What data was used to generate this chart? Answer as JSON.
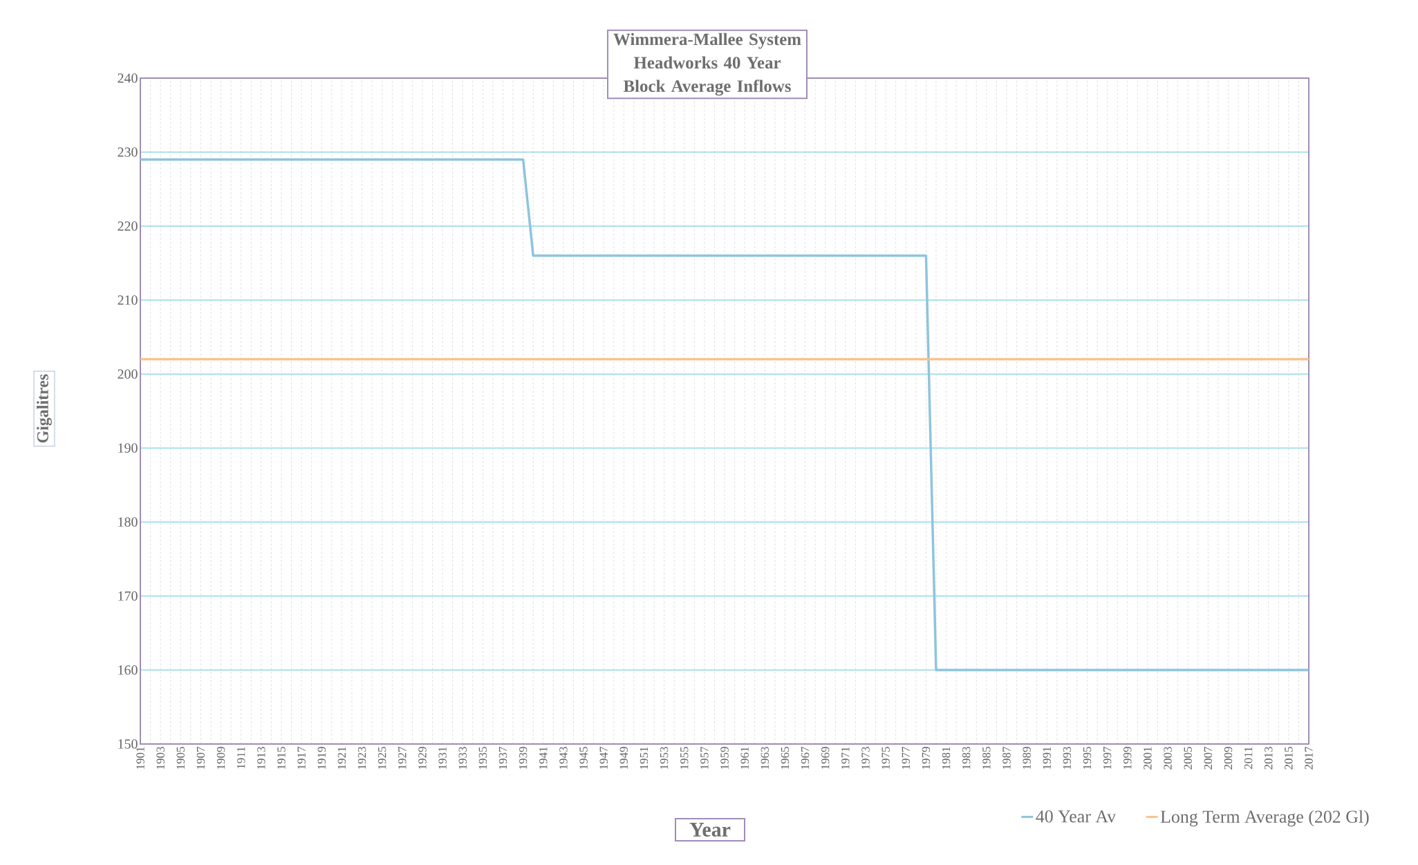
{
  "chart_data": {
    "type": "line",
    "title": "Wimmera-Mallee System Headworks 40 Year Block Average Inflows",
    "xlabel": "Year",
    "ylabel": "Gigalitres",
    "categories": [
      "1901",
      null,
      "1903",
      null,
      "1905",
      null,
      "1907",
      null,
      "1909",
      null,
      "1911",
      null,
      "1913",
      null,
      "1915",
      null,
      "1917",
      null,
      "1919",
      null,
      "1921",
      null,
      "1923",
      null,
      "1925",
      null,
      "1927",
      null,
      "1929",
      null,
      "1931",
      null,
      "1933",
      null,
      "1935",
      null,
      "1937",
      null,
      "1939",
      null,
      "1941",
      null,
      "1943",
      null,
      "1945",
      null,
      "1947",
      null,
      "1949",
      null,
      "1951",
      null,
      "1953",
      null,
      "1955",
      null,
      "1957",
      null,
      "1959",
      null,
      "1961",
      null,
      "1963",
      null,
      "1965",
      null,
      "1967",
      null,
      "1969",
      null,
      "1971",
      null,
      "1973",
      null,
      "1975",
      null,
      "1977",
      null,
      "1979",
      null,
      "1981",
      null,
      "1983",
      null,
      "1985",
      null,
      "1987",
      null,
      "1989",
      null,
      "1991",
      null,
      "1993",
      null,
      "1995",
      null,
      "1997",
      null,
      "1999",
      null,
      "2001",
      null,
      "2003",
      null,
      "2005",
      null,
      "2007",
      null,
      "2009",
      null,
      "2011",
      null,
      "2013",
      null,
      "2015",
      null,
      "2017"
    ],
    "series": [
      {
        "name": "40 Year Av",
        "color": "#8ec4dd",
        "values": [
          229,
          229,
          229,
          229,
          229,
          229,
          229,
          229,
          229,
          229,
          229,
          229,
          229,
          229,
          229,
          229,
          229,
          229,
          229,
          229,
          229,
          229,
          229,
          229,
          229,
          229,
          229,
          229,
          229,
          229,
          229,
          229,
          229,
          229,
          229,
          229,
          229,
          229,
          229,
          216,
          216,
          216,
          216,
          216,
          216,
          216,
          216,
          216,
          216,
          216,
          216,
          216,
          216,
          216,
          216,
          216,
          216,
          216,
          216,
          216,
          216,
          216,
          216,
          216,
          216,
          216,
          216,
          216,
          216,
          216,
          216,
          216,
          216,
          216,
          216,
          216,
          216,
          216,
          216,
          160,
          160,
          160,
          160,
          160,
          160,
          160,
          160,
          160,
          160,
          160,
          160,
          160,
          160,
          160,
          160,
          160,
          160,
          160,
          160,
          160,
          160,
          160,
          160,
          160,
          160,
          160,
          160,
          160,
          160,
          160,
          160,
          160,
          160,
          160,
          160,
          160,
          160
        ]
      },
      {
        "name": "Long Term Average (202 Gl)",
        "color": "#f7c38e",
        "values": [
          202,
          202,
          202,
          202,
          202,
          202,
          202,
          202,
          202,
          202,
          202,
          202,
          202,
          202,
          202,
          202,
          202,
          202,
          202,
          202,
          202,
          202,
          202,
          202,
          202,
          202,
          202,
          202,
          202,
          202,
          202,
          202,
          202,
          202,
          202,
          202,
          202,
          202,
          202,
          202,
          202,
          202,
          202,
          202,
          202,
          202,
          202,
          202,
          202,
          202,
          202,
          202,
          202,
          202,
          202,
          202,
          202,
          202,
          202,
          202,
          202,
          202,
          202,
          202,
          202,
          202,
          202,
          202,
          202,
          202,
          202,
          202,
          202,
          202,
          202,
          202,
          202,
          202,
          202,
          202,
          202,
          202,
          202,
          202,
          202,
          202,
          202,
          202,
          202,
          202,
          202,
          202,
          202,
          202,
          202,
          202,
          202,
          202,
          202,
          202,
          202,
          202,
          202,
          202,
          202,
          202,
          202,
          202,
          202,
          202,
          202,
          202,
          202,
          202,
          202,
          202,
          202
        ]
      }
    ],
    "ylim": [
      150,
      240
    ],
    "yticks": [
      150,
      160,
      170,
      180,
      190,
      200,
      210,
      220,
      230,
      240
    ],
    "grid": true,
    "legend": "bottom right",
    "marker": "none",
    "line_style": "solid"
  }
}
